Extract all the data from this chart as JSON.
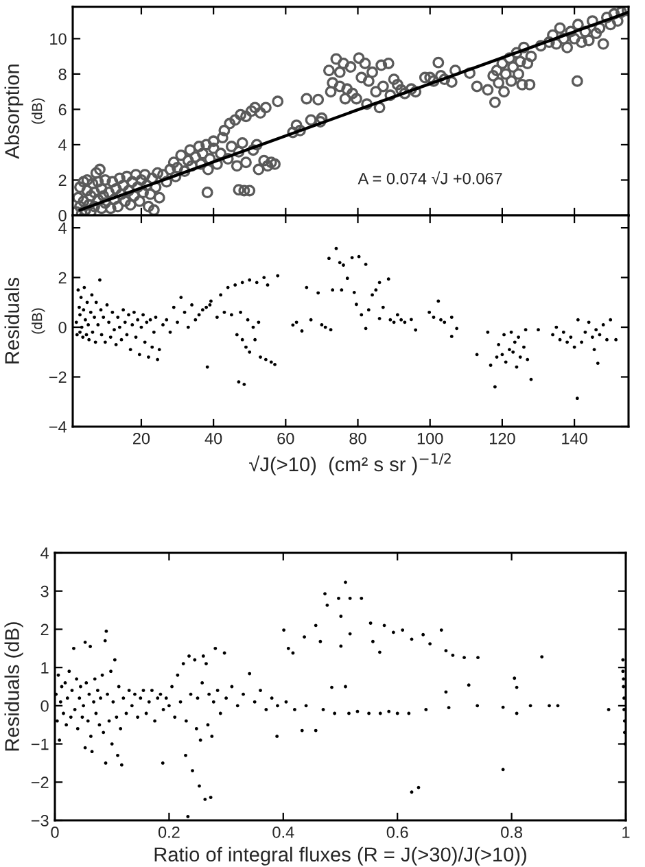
{
  "chart_data": [
    {
      "type": "scatter",
      "ylabel": "Absorption\n(dB)",
      "xlim": [
        1,
        155
      ],
      "xticks": [
        20,
        40,
        60,
        80,
        100,
        120,
        140
      ],
      "ylim": [
        0,
        11.8
      ],
      "yticks": [
        0,
        2,
        4,
        6,
        8,
        10
      ],
      "tick_labels": "y",
      "annotations": [
        "A = 0.074 √J +0.067"
      ],
      "series": [
        {
          "marker": "circle",
          "color": "#5a5a5a",
          "x": [
            2,
            2.5,
            3,
            3,
            3.5,
            4,
            4,
            4.5,
            5,
            5,
            5.5,
            6,
            6,
            6.5,
            7,
            7,
            7.5,
            8,
            8,
            8.5,
            9,
            9,
            9.5,
            10,
            10,
            11,
            11.5,
            12,
            12.5,
            13,
            13.5,
            14,
            14.5,
            15,
            15.5,
            16,
            16.5,
            17,
            17.5,
            18,
            18.5,
            19,
            19.5,
            20,
            20.5,
            21,
            21.5,
            22,
            22.5,
            23,
            23.5,
            24,
            24.5,
            25,
            26,
            27,
            28,
            29,
            29.5,
            30,
            31,
            32,
            33,
            33.5,
            34,
            35,
            36,
            36.5,
            37,
            38,
            38.3,
            38.5,
            39,
            40,
            40,
            41,
            42,
            42.5,
            43,
            44,
            44.5,
            45,
            46,
            46.5,
            47,
            47,
            47.5,
            48,
            48.5,
            49,
            49,
            50,
            50.5,
            51,
            51.5,
            52,
            52.5,
            53,
            54,
            54.5,
            55,
            56,
            57.8,
            57,
            62,
            63,
            64,
            65.8,
            67,
            69,
            69.6,
            70,
            72,
            72.5,
            73,
            74,
            75,
            75,
            76,
            76.5,
            77,
            78,
            78.5,
            79.6,
            80.3,
            81,
            82,
            82.5,
            83,
            84,
            85,
            86,
            86.5,
            87,
            88.5,
            89,
            90,
            91,
            92,
            93,
            94.8,
            96,
            98.6,
            100,
            101,
            102.3,
            103,
            104,
            106,
            107,
            111,
            113,
            116,
            117.5,
            118,
            118.5,
            119,
            120,
            120.5,
            121,
            122,
            122.5,
            123,
            124,
            124.5,
            125,
            125.5,
            126,
            127,
            127.6,
            128,
            130.7,
            133,
            134,
            135,
            136,
            137,
            138,
            139,
            140,
            140.8,
            141,
            142,
            143,
            144,
            145,
            146,
            147,
            148,
            149,
            150,
            151,
            152,
            153,
            154.7
          ],
          "values": [
            0.2,
            1.0,
            0.5,
            1.6,
            0.1,
            1.9,
            0.8,
            0.3,
            1.4,
            2.0,
            0.6,
            1.1,
            0.2,
            1.8,
            0.5,
            1.3,
            2.4,
            0.9,
            1.9,
            2.6,
            0.4,
            1.5,
            1.1,
            2.0,
            0.7,
            1.3,
            0.4,
            1.9,
            0.9,
            1.5,
            0.5,
            2.1,
            1.2,
            1.7,
            0.8,
            2.2,
            1.4,
            0.6,
            1.9,
            1.1,
            2.3,
            1.6,
            0.8,
            2.0,
            1.3,
            2.3,
            1.7,
            0.5,
            1.2,
            2.1,
            0.3,
            1.6,
            2.4,
            1.0,
            2.3,
            1.9,
            2.6,
            3.0,
            2.2,
            2.7,
            3.4,
            2.5,
            3.1,
            3.7,
            2.8,
            3.3,
            3.9,
            2.9,
            3.5,
            4.0,
            1.3,
            2.6,
            3.2,
            3.8,
            4.2,
            2.9,
            3.5,
            4.4,
            4.8,
            3.2,
            5.2,
            3.9,
            5.4,
            2.8,
            1.45,
            3.6,
            5.7,
            4.1,
            1.4,
            5.6,
            3.0,
            1.4,
            5.9,
            3.7,
            6.1,
            4.0,
            2.6,
            5.8,
            3.1,
            6.1,
            2.8,
            3.0,
            6.45,
            2.9,
            4.7,
            5.1,
            4.8,
            6.6,
            5.4,
            6.55,
            5.3,
            5.5,
            8.2,
            7.0,
            7.5,
            8.85,
            8.1,
            7.3,
            8.6,
            6.6,
            7.15,
            8.4,
            6.9,
            6.6,
            8.9,
            7.8,
            8.6,
            6.3,
            7.6,
            8.1,
            7.0,
            6.1,
            8.5,
            7.3,
            8.6,
            6.8,
            7.7,
            7.4,
            7.1,
            6.9,
            7.15,
            7.0,
            7.8,
            7.8,
            7.6,
            8.65,
            7.9,
            7.7,
            7.55,
            8.2,
            8.05,
            7.3,
            7.1,
            7.9,
            6.4,
            8.2,
            7.5,
            8.6,
            7.0,
            8.0,
            8.9,
            7.6,
            8.4,
            9.2,
            8.0,
            8.7,
            7.4,
            9.5,
            8.6,
            7.4,
            9.0,
            9.6,
            9.8,
            10.2,
            9.7,
            10.6,
            10.0,
            9.5,
            10.4,
            10.0,
            7.6,
            10.8,
            9.8,
            10.4,
            9.9,
            11.0,
            10.3,
            10.6,
            9.7,
            11.2,
            10.8,
            11.4,
            11.0,
            11.5,
            11.6
          ]
        },
        {
          "type": "line",
          "marker": "none",
          "line_style": "solid",
          "color": "#000000",
          "x": [
            3,
            155
          ],
          "values": [
            0.3,
            11.5
          ]
        }
      ]
    },
    {
      "type": "scatter",
      "xlabel": "√J(>10)  (cm² s sr )$^{−1/2}$",
      "ylabel": "Residuals\n(dB)",
      "xlim": [
        1,
        155
      ],
      "xticks": [
        20,
        40,
        60,
        80,
        100,
        120,
        140
      ],
      "ylim": [
        -4,
        4.5
      ],
      "yticks": [
        {
          "value": -4,
          "label": "−4"
        },
        {
          "value": -2,
          "label": "−2"
        },
        0,
        2,
        4
      ],
      "series": [
        {
          "marker": "circle",
          "color": "#000000",
          "x": [
            2,
            2.2,
            2.5,
            2.8,
            3,
            3,
            3.3,
            3.5,
            3.8,
            4,
            4.2,
            4.5,
            4.8,
            5,
            5.3,
            5.5,
            6,
            6.3,
            6.5,
            7,
            7.3,
            7.5,
            8,
            8.5,
            8.8,
            9,
            9.5,
            10,
            10.5,
            11,
            11.5,
            12,
            12.5,
            13,
            13.5,
            14,
            14.5,
            15,
            15.5,
            16,
            16.5,
            17,
            17.5,
            18,
            18.5,
            19,
            19.5,
            20,
            20.5,
            21,
            21.5,
            22,
            22.5,
            23,
            23.5,
            24,
            24.5,
            25,
            26,
            27,
            28,
            29,
            30,
            31,
            32,
            33,
            34,
            35,
            36,
            37,
            38,
            38.3,
            39,
            39.3,
            41,
            42,
            43,
            44,
            45,
            46,
            46.5,
            47,
            47.5,
            48,
            48,
            48.5,
            49,
            49.5,
            50,
            50,
            51,
            51.5,
            52,
            52.5,
            53,
            54,
            54.5,
            55,
            56,
            57,
            57.8,
            62,
            63,
            64.5,
            65.8,
            67,
            69,
            70,
            71,
            72,
            72.5,
            73,
            74,
            75,
            75.5,
            76,
            77.1,
            78.4,
            79,
            79.6,
            80.3,
            81,
            82.2,
            82.2,
            83,
            84,
            85,
            86,
            86,
            87,
            88.5,
            89,
            90,
            91,
            92,
            93,
            94.8,
            96,
            99.8,
            101,
            102.3,
            103,
            104,
            106,
            106,
            107.4,
            113,
            116,
            116.8,
            118,
            118.5,
            119,
            120,
            120.5,
            121,
            122,
            122.5,
            123,
            123.5,
            124,
            124.5,
            125,
            126,
            126.5,
            127,
            128,
            130,
            134,
            135,
            136,
            137,
            138,
            139,
            140,
            140.8,
            141,
            142,
            143,
            144,
            145,
            145.5,
            146,
            146.5,
            147,
            148,
            149,
            150,
            151.5
          ],
          "values": [
            0.2,
            -0.3,
            1.5,
            0.8,
            -0.2,
            0.5,
            1.2,
            0.0,
            -0.4,
            0.7,
            1.6,
            0.3,
            -0.3,
            1.0,
            0.1,
            -0.5,
            0.6,
            1.3,
            -0.2,
            0.4,
            -0.6,
            1.0,
            0.1,
            1.9,
            0.7,
            -0.3,
            0.4,
            -0.6,
            0.9,
            0.2,
            -0.4,
            0.6,
            -0.1,
            -0.7,
            0.4,
            0.0,
            -0.5,
            0.7,
            0.2,
            -0.3,
            0.5,
            -0.9,
            0.1,
            0.6,
            -0.4,
            0.3,
            -1.1,
            0.0,
            0.5,
            -0.6,
            0.2,
            -1.2,
            0.3,
            -0.8,
            -0.2,
            0.4,
            -1.3,
            -0.9,
            0.1,
            0.3,
            -0.2,
            0.8,
            0.2,
            1.2,
            0.6,
            0.0,
            0.9,
            0.3,
            0.5,
            0.7,
            0.8,
            -1.6,
            0.9,
            1.05,
            0.4,
            1.3,
            0.6,
            1.6,
            0.5,
            1.7,
            -0.3,
            -2.2,
            0.6,
            1.8,
            -0.5,
            -2.3,
            -0.8,
            0.3,
            -1.0,
            1.9,
            0.0,
            -0.5,
            1.8,
            0.2,
            -1.2,
            2.0,
            -1.3,
            1.7,
            -1.4,
            -1.5,
            2.07,
            0.09,
            0.2,
            -0.15,
            1.6,
            0.3,
            1.38,
            0.1,
            0.0,
            2.77,
            -0.1,
            1.5,
            3.17,
            2.6,
            1.5,
            2.5,
            1.97,
            2.8,
            1.4,
            0.92,
            2.84,
            0.5,
            2.53,
            -0.05,
            0.7,
            1.3,
            1.5,
            1.8,
            0.35,
            0.8,
            1.94,
            0.3,
            0.2,
            0.5,
            0.3,
            0.2,
            0.31,
            -0.11,
            0.6,
            0.4,
            1.05,
            0.3,
            0.2,
            0.4,
            -0.37,
            -0.05,
            -1.1,
            -0.2,
            -1.53,
            -2.4,
            -1.2,
            -0.7,
            -1.1,
            -0.3,
            -1.4,
            -0.9,
            -0.2,
            -1.0,
            -0.6,
            -1.6,
            -0.4,
            -1.2,
            -0.8,
            -0.1,
            -1.3,
            -2.1,
            -0.1,
            -0.3,
            0.0,
            -0.5,
            -0.2,
            -0.6,
            -0.4,
            -0.8,
            -2.86,
            0.3,
            -0.6,
            -0.2,
            0.2,
            -0.4,
            -0.9,
            -0.1,
            -1.45,
            -0.3,
            0.1,
            -0.5,
            0.3,
            -0.5
          ]
        }
      ]
    },
    {
      "type": "scatter",
      "xlabel": "Ratio of integral fluxes (R = J(>30)/J(>10))",
      "ylabel": "Residuals (dB)",
      "xlim": [
        0,
        1
      ],
      "xticks": [
        0,
        0.2,
        0.4,
        0.6,
        0.8,
        1
      ],
      "ylim": [
        -3,
        4
      ],
      "yticks": [
        {
          "value": -3,
          "label": "−3"
        },
        {
          "value": -2,
          "label": "−2"
        },
        {
          "value": -1,
          "label": "−1"
        },
        0,
        1,
        2,
        3,
        4
      ],
      "series": [
        {
          "marker": "circle",
          "color": "#000000",
          "x": [
            0.002,
            0.004,
            0.006,
            0.008,
            0.01,
            0.012,
            0.015,
            0.018,
            0.02,
            0.022,
            0.025,
            0.028,
            0.03,
            0.033,
            0.035,
            0.038,
            0.04,
            0.043,
            0.045,
            0.048,
            0.05,
            0.053,
            0.053,
            0.055,
            0.058,
            0.06,
            0.062,
            0.063,
            0.065,
            0.068,
            0.07,
            0.072,
            0.075,
            0.078,
            0.08,
            0.083,
            0.085,
            0.088,
            0.089,
            0.09,
            0.092,
            0.095,
            0.098,
            0.1,
            0.102,
            0.105,
            0.108,
            0.11,
            0.112,
            0.115,
            0.117,
            0.12,
            0.125,
            0.13,
            0.135,
            0.14,
            0.145,
            0.15,
            0.155,
            0.16,
            0.165,
            0.17,
            0.175,
            0.18,
            0.185,
            0.189,
            0.19,
            0.195,
            0.2,
            0.205,
            0.21,
            0.215,
            0.22,
            0.225,
            0.229,
            0.23,
            0.233,
            0.235,
            0.238,
            0.241,
            0.245,
            0.248,
            0.25,
            0.253,
            0.255,
            0.258,
            0.26,
            0.263,
            0.265,
            0.268,
            0.27,
            0.273,
            0.275,
            0.278,
            0.281,
            0.285,
            0.29,
            0.297,
            0.3,
            0.31,
            0.32,
            0.33,
            0.341,
            0.35,
            0.36,
            0.37,
            0.38,
            0.389,
            0.39,
            0.401,
            0.405,
            0.409,
            0.417,
            0.42,
            0.433,
            0.437,
            0.44,
            0.457,
            0.457,
            0.465,
            0.47,
            0.473,
            0.477,
            0.485,
            0.49,
            0.497,
            0.501,
            0.501,
            0.509,
            0.509,
            0.515,
            0.517,
            0.517,
            0.53,
            0.537,
            0.55,
            0.553,
            0.557,
            0.569,
            0.57,
            0.577,
            0.585,
            0.593,
            0.6,
            0.609,
            0.62,
            0.625,
            0.625,
            0.637,
            0.645,
            0.65,
            0.657,
            0.677,
            0.685,
            0.685,
            0.69,
            0.697,
            0.717,
            0.725,
            0.741,
            0.74,
            0.785,
            0.785,
            0.805,
            0.809,
            0.809,
            0.833,
            0.853,
            0.866,
            0.881,
            0.97,
            0.995,
            0.995,
            0.996,
            0.997,
            0.997,
            0.998,
            0.998,
            0.999,
            0.996
          ],
          "values": [
            0.3,
            -0.4,
            0.8,
            -0.9,
            0.1,
            0.5,
            -0.2,
            0.6,
            -0.5,
            0.2,
            0.9,
            -0.3,
            0.4,
            1.5,
            -0.1,
            0.7,
            -0.6,
            0.2,
            0.5,
            -0.3,
            0.0,
            1.66,
            -1.1,
            0.6,
            -0.4,
            0.3,
            1.55,
            -0.8,
            -1.2,
            0.1,
            0.7,
            -0.2,
            0.4,
            -0.5,
            0.2,
            0.8,
            -0.7,
            1.7,
            -1.5,
            1.95,
            0.3,
            -0.4,
            0.9,
            -1.0,
            0.1,
            1.2,
            -0.3,
            -1.3,
            0.5,
            -0.6,
            -1.55,
            0.2,
            -0.2,
            0.4,
            0.0,
            0.3,
            -0.3,
            0.2,
            0.4,
            -0.2,
            0.1,
            0.4,
            -0.4,
            0.2,
            0.3,
            -1.5,
            -0.1,
            0.2,
            0.0,
            0.5,
            -0.3,
            0.8,
            0.1,
            1.1,
            -1.3,
            -0.4,
            -2.9,
            1.3,
            0.3,
            -1.7,
            1.2,
            -0.6,
            0.2,
            -2.1,
            -0.9,
            0.6,
            1.3,
            -2.45,
            1.1,
            -0.5,
            0.3,
            -2.4,
            -0.8,
            0.1,
            1.5,
            0.4,
            -0.2,
            1.38,
            0.2,
            0.5,
            0.0,
            0.3,
            0.84,
            0.1,
            0.4,
            -0.1,
            0.2,
            -0.8,
            0.0,
            1.98,
            0.1,
            1.5,
            1.38,
            -0.1,
            -0.65,
            1.8,
            0.0,
            2.1,
            -0.65,
            1.68,
            -0.1,
            2.93,
            2.63,
            0.48,
            -0.2,
            2.81,
            2.34,
            1.56,
            3.23,
            0.5,
            -0.2,
            2.81,
            1.88,
            -0.15,
            2.81,
            -0.2,
            2.16,
            1.68,
            1.4,
            -0.2,
            2.1,
            -0.15,
            1.92,
            -0.2,
            1.98,
            -0.2,
            1.74,
            -2.26,
            -2.14,
            1.86,
            -0.1,
            1.62,
            1.98,
            1.44,
            0.36,
            -0.05,
            1.32,
            1.26,
            0.54,
            1.26,
            0.0,
            -0.04,
            -1.67,
            0.72,
            0.48,
            -0.2,
            0.0,
            1.28,
            0.0,
            0.0,
            -0.1,
            1.2,
            0.9,
            0.5,
            0.2,
            -0.1,
            -0.4,
            -0.7,
            -1.0,
            0.7
          ]
        }
      ]
    }
  ]
}
